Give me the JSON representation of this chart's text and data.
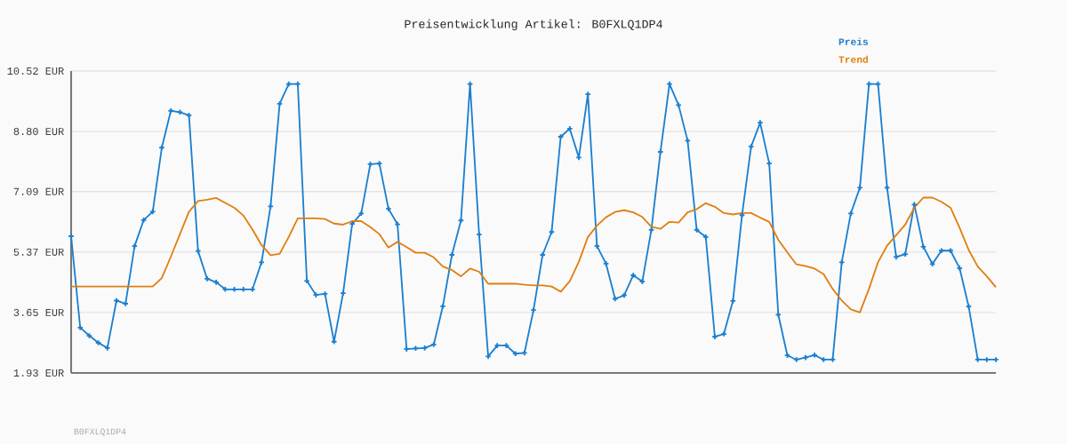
{
  "chart_data": {
    "type": "line",
    "title": "Preisentwicklung Artikel: B0FXLQ1DP4",
    "categories": [
      null,
      null,
      null,
      null,
      null,
      null,
      null,
      null,
      null,
      null,
      null,
      null,
      null,
      null,
      null,
      null,
      null,
      null,
      null,
      null,
      null,
      null,
      null,
      null,
      null,
      null,
      null,
      null,
      null,
      null,
      null,
      null,
      null,
      null,
      null,
      null,
      null,
      null,
      null,
      null,
      null,
      null,
      null,
      null,
      null,
      null,
      null,
      null,
      null,
      null,
      null,
      null,
      null,
      null,
      null,
      null,
      null,
      null,
      null,
      null,
      null,
      null,
      null,
      null,
      null,
      null,
      null,
      null,
      null,
      null,
      null,
      null,
      null,
      null,
      null,
      null,
      null,
      null,
      null,
      null,
      null,
      null,
      null,
      null,
      null,
      null,
      null,
      null,
      null,
      null,
      null,
      null,
      null,
      null,
      null,
      null,
      null,
      null,
      null,
      null,
      null,
      null,
      null
    ],
    "series": [
      {
        "name": "Preis",
        "color": "#1a7fd0",
        "marker": "cross",
        "values": [
          5.82,
          3.22,
          2.99,
          2.79,
          2.64,
          3.99,
          3.9,
          5.54,
          6.28,
          6.52,
          8.34,
          9.39,
          9.35,
          9.26,
          5.4,
          4.61,
          4.51,
          4.31,
          4.31,
          4.31,
          4.31,
          5.08,
          6.67,
          9.59,
          10.15,
          10.15,
          4.55,
          4.15,
          4.18,
          2.82,
          4.2,
          6.17,
          6.47,
          7.87,
          7.89,
          6.6,
          6.16,
          2.61,
          2.63,
          2.64,
          2.74,
          3.83,
          5.29,
          6.27,
          10.15,
          5.87,
          2.4,
          2.71,
          2.71,
          2.48,
          2.5,
          3.72,
          5.29,
          5.94,
          8.65,
          8.88,
          8.06,
          9.86,
          5.54,
          5.04,
          4.04,
          4.14,
          4.71,
          4.53,
          6.0,
          8.22,
          10.15,
          9.55,
          8.54,
          6.0,
          5.8,
          2.96,
          3.04,
          3.98,
          6.42,
          8.37,
          9.05,
          7.89,
          3.59,
          2.43,
          2.31,
          2.37,
          2.44,
          2.31,
          2.31,
          5.08,
          6.47,
          7.2,
          10.15,
          10.15,
          7.2,
          5.23,
          5.31,
          6.72,
          5.52,
          5.03,
          5.41,
          5.41,
          4.91,
          3.82,
          2.31,
          2.31,
          2.31
        ]
      },
      {
        "name": "Trend",
        "color": "#e07f10",
        "marker": "none",
        "values": [
          4.39,
          4.39,
          4.39,
          4.39,
          4.39,
          4.39,
          4.39,
          4.39,
          4.39,
          4.39,
          4.63,
          5.24,
          5.88,
          6.52,
          6.82,
          6.86,
          6.91,
          6.77,
          6.63,
          6.41,
          6.01,
          5.57,
          5.28,
          5.32,
          5.8,
          6.33,
          6.33,
          6.33,
          6.31,
          6.18,
          6.15,
          6.25,
          6.25,
          6.08,
          5.88,
          5.5,
          5.66,
          5.51,
          5.35,
          5.35,
          5.22,
          4.96,
          4.86,
          4.68,
          4.9,
          4.81,
          4.47,
          4.47,
          4.47,
          4.47,
          4.44,
          4.42,
          4.42,
          4.39,
          4.24,
          4.54,
          5.09,
          5.8,
          6.12,
          6.36,
          6.51,
          6.56,
          6.5,
          6.37,
          6.09,
          6.03,
          6.23,
          6.21,
          6.5,
          6.59,
          6.76,
          6.66,
          6.48,
          6.44,
          6.48,
          6.48,
          6.35,
          6.23,
          5.72,
          5.36,
          5.02,
          4.97,
          4.9,
          4.74,
          4.32,
          3.99,
          3.74,
          3.65,
          4.32,
          5.08,
          5.55,
          5.85,
          6.15,
          6.63,
          6.92,
          6.92,
          6.8,
          6.63,
          6.06,
          5.43,
          4.96,
          4.68,
          4.37
        ]
      }
    ],
    "ylim": [
      1.93,
      10.52
    ],
    "yticks": [
      {
        "value": 1.93,
        "label": "1.93 EUR"
      },
      {
        "value": 3.65,
        "label": "3.65 EUR"
      },
      {
        "value": 5.37,
        "label": "5.37 EUR"
      },
      {
        "value": 7.09,
        "label": "7.09 EUR"
      },
      {
        "value": 8.8,
        "label": "8.80 EUR"
      },
      {
        "value": 10.52,
        "label": "10.52 EUR"
      }
    ],
    "grid": "y",
    "legend": "top right",
    "tick_labels": "y",
    "line_style": "solid",
    "annotations": [
      "B0FXLQ1DP4"
    ]
  }
}
